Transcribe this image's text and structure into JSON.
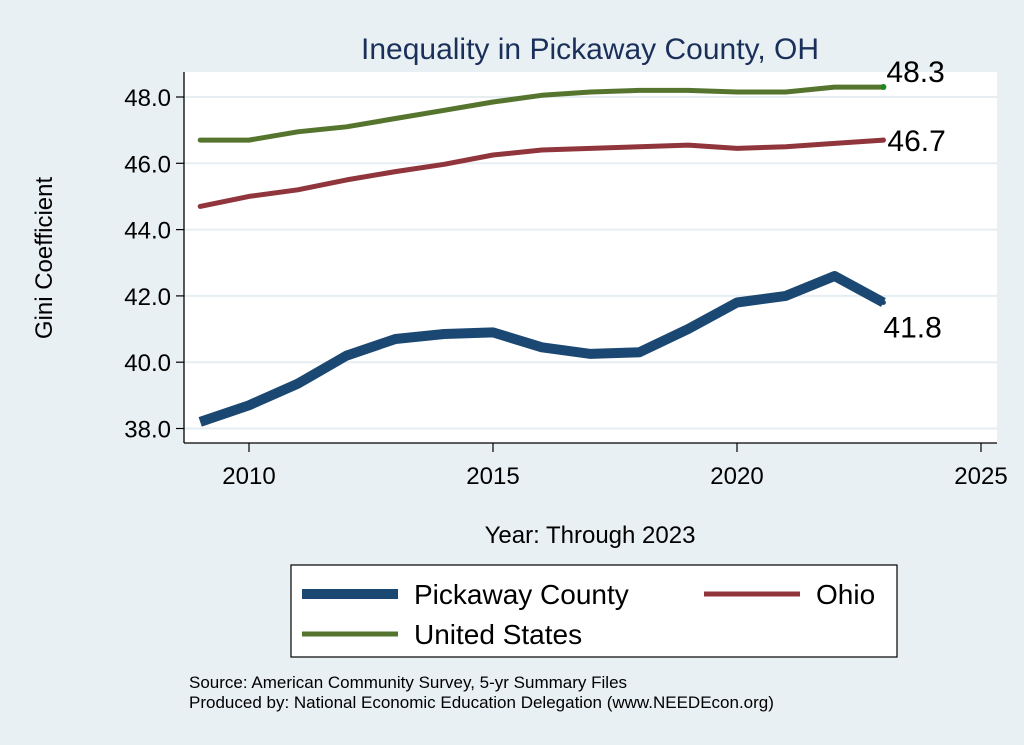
{
  "chart_data": {
    "type": "line",
    "title": "Inequality in Pickaway County, OH",
    "xlabel": "Year: Through 2023",
    "ylabel": "Gini Coefficient",
    "xlim": [
      2008.3,
      2025.3
    ],
    "ylim": [
      37.6,
      48.75
    ],
    "xticks": [
      2010,
      2015,
      2020,
      2025
    ],
    "yticks": [
      38.0,
      40.0,
      42.0,
      44.0,
      46.0,
      48.0
    ],
    "ytick_labels": [
      "38.0",
      "40.0",
      "42.0",
      "44.0",
      "46.0",
      "48.0"
    ],
    "xtick_labels": [
      "2010",
      "2015",
      "2020",
      "2025"
    ],
    "grid": true,
    "legend_position": "bottom",
    "x": [
      2009,
      2010,
      2011,
      2012,
      2013,
      2014,
      2015,
      2016,
      2017,
      2018,
      2019,
      2020,
      2021,
      2022,
      2023
    ],
    "series": [
      {
        "name": "Pickaway County",
        "color": "#1b4872",
        "values": [
          38.2,
          38.7,
          39.35,
          40.2,
          40.7,
          40.85,
          40.9,
          40.45,
          40.25,
          40.3,
          41.0,
          41.8,
          42.0,
          42.6,
          41.8
        ],
        "end_label": "41.8",
        "end_label_position": "below"
      },
      {
        "name": "Ohio",
        "color": "#90353b",
        "values": [
          44.7,
          45.0,
          45.2,
          45.5,
          45.75,
          45.97,
          46.25,
          46.4,
          46.45,
          46.5,
          46.55,
          46.45,
          46.5,
          46.6,
          46.7
        ],
        "end_label": "46.7",
        "end_label_position": "right"
      },
      {
        "name": "United States",
        "color": "#55752f",
        "values": [
          46.7,
          46.7,
          46.95,
          47.1,
          47.35,
          47.6,
          47.85,
          48.05,
          48.15,
          48.2,
          48.2,
          48.15,
          48.15,
          48.3,
          48.3
        ],
        "end_label": "48.3",
        "end_label_position": "above-right"
      }
    ],
    "notes": [
      "Source: American Community Survey, 5-yr Summary Files",
      "Produced by: National Economic Education Delegation (www.NEEDEcon.org)"
    ]
  }
}
